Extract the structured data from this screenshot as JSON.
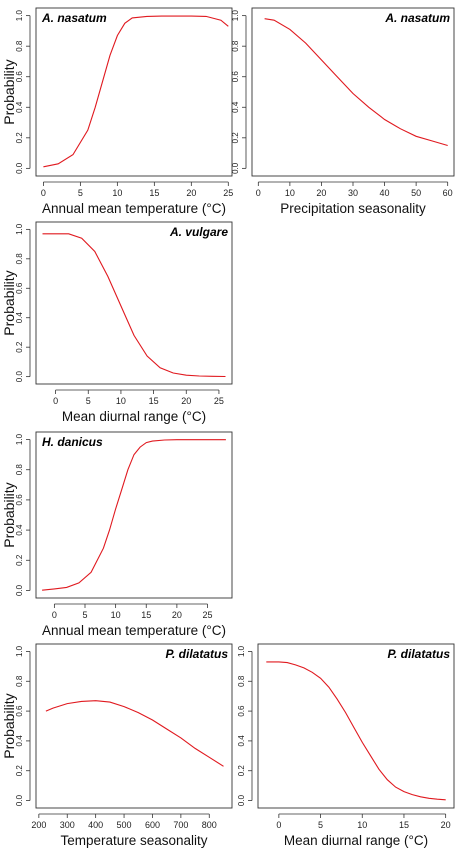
{
  "figure": {
    "curve_color": "#e0191f"
  },
  "chart_data": [
    {
      "type": "line",
      "title": "A. nasatum",
      "xlabel": "Annual mean temperature  (°C)",
      "ylabel": "Probability",
      "xlim": [
        -1,
        25.5
      ],
      "ylim": [
        -0.05,
        1.05
      ],
      "xticks": [
        0,
        5,
        10,
        15,
        20,
        25
      ],
      "yticks": [
        0.0,
        0.2,
        0.4,
        0.6,
        0.8,
        1.0
      ],
      "series": [
        {
          "x": [
            0,
            2,
            4,
            6,
            7,
            8,
            9,
            10,
            11,
            12,
            14,
            16,
            18,
            20,
            22,
            24,
            25
          ],
          "y": [
            0.01,
            0.03,
            0.09,
            0.25,
            0.4,
            0.57,
            0.74,
            0.87,
            0.95,
            0.985,
            0.995,
            0.997,
            0.997,
            0.997,
            0.995,
            0.97,
            0.93
          ]
        }
      ]
    },
    {
      "type": "line",
      "title": "A. nasatum",
      "xlabel": "Precipitation seasonality",
      "ylabel": "",
      "xlim": [
        -2,
        62
      ],
      "ylim": [
        -0.05,
        1.05
      ],
      "xticks": [
        0,
        10,
        20,
        30,
        40,
        50,
        60
      ],
      "yticks": [
        0.0,
        0.2,
        0.4,
        0.6,
        0.8,
        1.0
      ],
      "series": [
        {
          "x": [
            2,
            5,
            10,
            15,
            20,
            25,
            30,
            35,
            40,
            45,
            50,
            55,
            60
          ],
          "y": [
            0.98,
            0.97,
            0.91,
            0.82,
            0.71,
            0.6,
            0.49,
            0.4,
            0.32,
            0.26,
            0.21,
            0.18,
            0.15
          ]
        }
      ]
    },
    {
      "type": "line",
      "title": "A. vulgare",
      "xlabel": "Mean diurnal range (°C)",
      "ylabel": "Probability",
      "xlim": [
        -3,
        27
      ],
      "ylim": [
        -0.05,
        1.05
      ],
      "xticks": [
        0,
        5,
        10,
        15,
        20,
        25
      ],
      "yticks": [
        0.0,
        0.2,
        0.4,
        0.6,
        0.8,
        1.0
      ],
      "series": [
        {
          "x": [
            -2,
            2,
            4,
            6,
            8,
            10,
            12,
            14,
            16,
            18,
            20,
            22,
            24,
            26
          ],
          "y": [
            0.97,
            0.97,
            0.94,
            0.85,
            0.68,
            0.48,
            0.28,
            0.14,
            0.06,
            0.025,
            0.01,
            0.004,
            0.002,
            0.001
          ]
        }
      ]
    },
    {
      "type": "line",
      "title": "H. danicus",
      "xlabel": "Annual mean temperature  (°C)",
      "ylabel": "Probability",
      "xlim": [
        -3,
        29
      ],
      "ylim": [
        -0.05,
        1.05
      ],
      "xticks": [
        0,
        5,
        10,
        15,
        20,
        25
      ],
      "yticks": [
        0.0,
        0.2,
        0.4,
        0.6,
        0.8,
        1.0
      ],
      "series": [
        {
          "x": [
            -2,
            0,
            2,
            4,
            6,
            8,
            9,
            10,
            11,
            12,
            13,
            14,
            15,
            16,
            18,
            20,
            22,
            25,
            28
          ],
          "y": [
            0.002,
            0.01,
            0.02,
            0.05,
            0.12,
            0.28,
            0.4,
            0.54,
            0.67,
            0.8,
            0.9,
            0.95,
            0.98,
            0.99,
            0.997,
            0.999,
            0.999,
            0.999,
            0.999
          ]
        }
      ]
    },
    {
      "type": "line",
      "title": "P. dilatatus",
      "xlabel": "Temperature seasonality",
      "ylabel": "Probability",
      "xlim": [
        190,
        880
      ],
      "ylim": [
        -0.05,
        1.05
      ],
      "xticks": [
        200,
        300,
        400,
        500,
        600,
        700,
        800
      ],
      "yticks": [
        0.0,
        0.2,
        0.4,
        0.6,
        0.8,
        1.0
      ],
      "series": [
        {
          "x": [
            225,
            250,
            300,
            350,
            400,
            450,
            500,
            550,
            600,
            650,
            700,
            750,
            800,
            850
          ],
          "y": [
            0.6,
            0.62,
            0.65,
            0.665,
            0.67,
            0.66,
            0.63,
            0.59,
            0.54,
            0.48,
            0.42,
            0.35,
            0.29,
            0.23
          ]
        }
      ]
    },
    {
      "type": "line",
      "title": "P. dilatatus",
      "xlabel": "Mean diurnal range (°C)",
      "ylabel": "",
      "xlim": [
        -2.5,
        21
      ],
      "ylim": [
        -0.05,
        1.05
      ],
      "xticks": [
        0,
        5,
        10,
        15,
        20
      ],
      "yticks": [
        0.0,
        0.2,
        0.4,
        0.6,
        0.8,
        1.0
      ],
      "series": [
        {
          "x": [
            -1.5,
            0,
            1,
            2,
            3,
            4,
            5,
            6,
            7,
            8,
            9,
            10,
            11,
            12,
            13,
            14,
            15,
            16,
            17,
            18,
            19,
            20
          ],
          "y": [
            0.93,
            0.93,
            0.925,
            0.91,
            0.89,
            0.86,
            0.82,
            0.76,
            0.68,
            0.59,
            0.49,
            0.39,
            0.3,
            0.21,
            0.14,
            0.09,
            0.06,
            0.04,
            0.025,
            0.015,
            0.009,
            0.005
          ]
        }
      ]
    }
  ]
}
